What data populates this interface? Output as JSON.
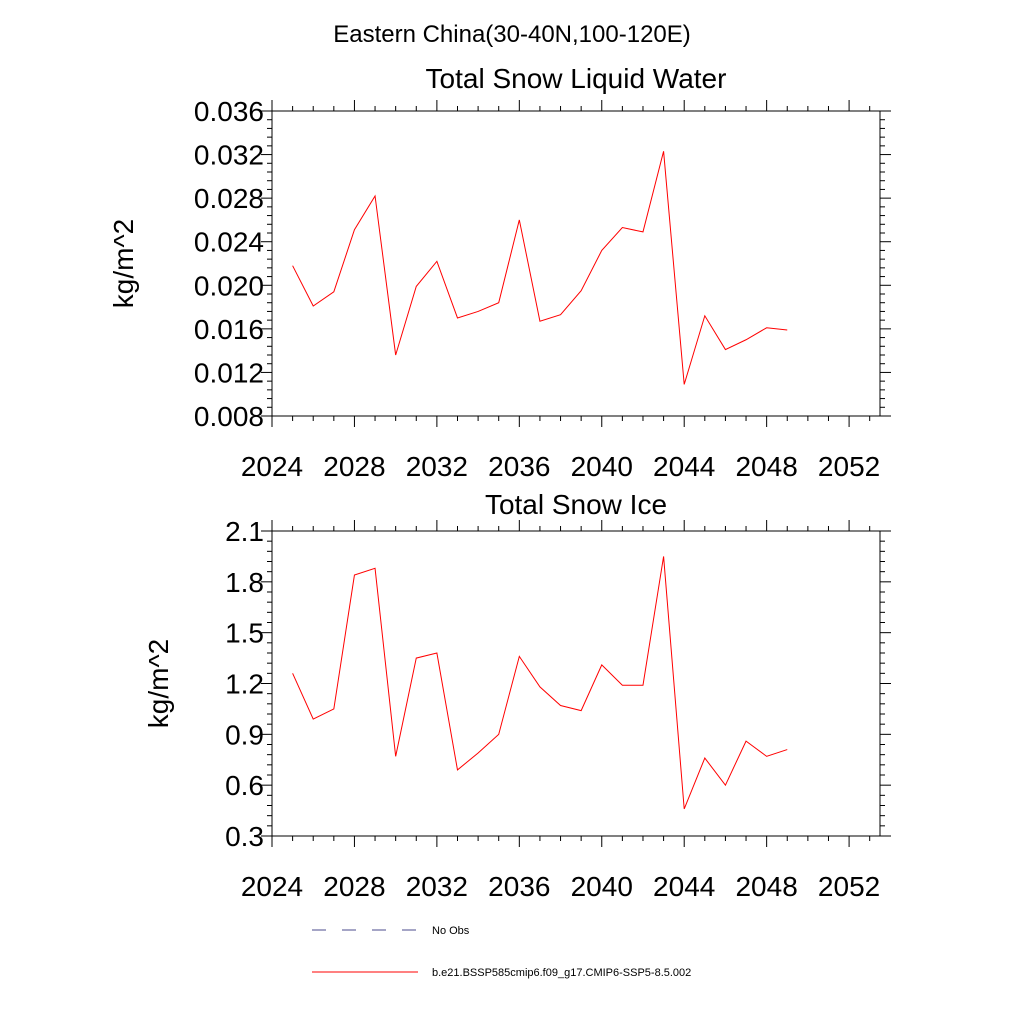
{
  "figure_title": "Eastern China(30-40N,100-120E)",
  "legend": {
    "entries": [
      {
        "label": "No Obs",
        "color": "#4b4b8c",
        "dash": true
      },
      {
        "label": "b.e21.BSSP585cmip6.f09_g17.CMIP6-SSP5-8.5.002",
        "color": "#ff0000",
        "dash": false
      }
    ]
  },
  "chart_data": [
    {
      "type": "line",
      "title": "Total Snow Liquid Water",
      "xlabel": "",
      "ylabel": "kg/m^2",
      "xlim": [
        2024,
        2053.5
      ],
      "ylim": [
        0.008,
        0.036
      ],
      "x_ticks": [
        2024,
        2028,
        2032,
        2036,
        2040,
        2044,
        2048,
        2052
      ],
      "x_tick_labels": [
        "2024",
        "2028",
        "2032",
        "2036",
        "2040",
        "2044",
        "2048",
        "2052"
      ],
      "y_ticks": [
        0.008,
        0.012,
        0.016,
        0.02,
        0.024,
        0.028,
        0.032,
        0.036
      ],
      "y_tick_labels": [
        "0.008",
        "0.012",
        "0.016",
        "0.020",
        "0.024",
        "0.028",
        "0.032",
        "0.036"
      ],
      "grid": false,
      "x": [
        2025,
        2026,
        2027,
        2028,
        2029,
        2030,
        2031,
        2032,
        2033,
        2034,
        2035,
        2036,
        2037,
        2038,
        2039,
        2040,
        2041,
        2042,
        2043,
        2044,
        2045,
        2046,
        2047,
        2048,
        2049
      ],
      "series": [
        {
          "color": "#ff0000",
          "values": [
            0.0218,
            0.0181,
            0.0194,
            0.0251,
            0.0282,
            0.0136,
            0.0199,
            0.0222,
            0.017,
            0.0176,
            0.0184,
            0.026,
            0.0167,
            0.0173,
            0.0195,
            0.0232,
            0.0253,
            0.0249,
            0.0323,
            0.0109,
            0.0172,
            0.0141,
            0.015,
            0.0161,
            0.0159
          ]
        }
      ]
    },
    {
      "type": "line",
      "title": "Total Snow Ice",
      "xlabel": "",
      "ylabel": "kg/m^2",
      "xlim": [
        2024,
        2053.5
      ],
      "ylim": [
        0.3,
        2.1
      ],
      "x_ticks": [
        2024,
        2028,
        2032,
        2036,
        2040,
        2044,
        2048,
        2052
      ],
      "x_tick_labels": [
        "2024",
        "2028",
        "2032",
        "2036",
        "2040",
        "2044",
        "2048",
        "2052"
      ],
      "y_ticks": [
        0.3,
        0.6,
        0.9,
        1.2,
        1.5,
        1.8,
        2.1
      ],
      "y_tick_labels": [
        "0.3",
        "0.6",
        "0.9",
        "1.2",
        "1.5",
        "1.8",
        "2.1"
      ],
      "grid": false,
      "x": [
        2025,
        2026,
        2027,
        2028,
        2029,
        2030,
        2031,
        2032,
        2033,
        2034,
        2035,
        2036,
        2037,
        2038,
        2039,
        2040,
        2041,
        2042,
        2043,
        2044,
        2045,
        2046,
        2047,
        2048,
        2049
      ],
      "series": [
        {
          "color": "#ff0000",
          "values": [
            1.26,
            0.99,
            1.05,
            1.84,
            1.88,
            0.77,
            1.35,
            1.38,
            0.69,
            0.79,
            0.9,
            1.36,
            1.18,
            1.07,
            1.04,
            1.31,
            1.19,
            1.19,
            1.95,
            0.46,
            0.76,
            0.6,
            0.86,
            0.77,
            0.81
          ]
        }
      ]
    }
  ]
}
